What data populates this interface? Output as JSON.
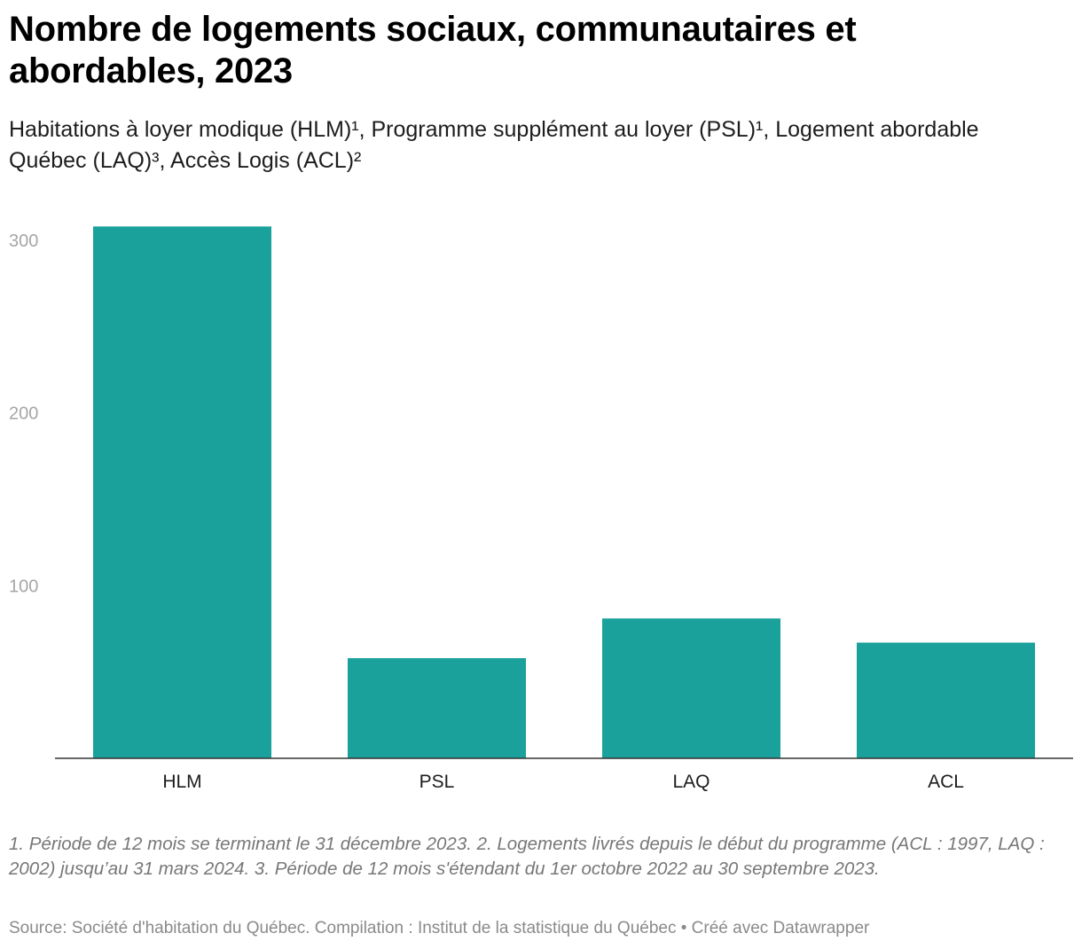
{
  "header": {
    "title": "Nombre de logements sociaux, communautaires et abordables, 2023",
    "subtitle": "Habitations à loyer modique (HLM)¹, Programme supplément au loyer (PSL)¹, Logement abordable Québec (LAQ)³, Accès Logis (ACL)²"
  },
  "chart_data": {
    "type": "bar",
    "title": "Nombre de logements sociaux, communautaires et abordables, 2023",
    "subtitle": "Habitations à loyer modique (HLM)¹, Programme supplément au loyer (PSL)¹, Logement abordable Québec (LAQ)³, Accès Logis (ACL)²",
    "xlabel": "",
    "ylabel": "",
    "categories": [
      "HLM",
      "PSL",
      "LAQ",
      "ACL"
    ],
    "values": [
      308,
      58,
      81,
      67
    ],
    "ylim": [
      0,
      310
    ],
    "yticks": [
      100,
      200,
      300
    ],
    "ytick_labels": [
      "100",
      "200",
      "300"
    ],
    "grid": false,
    "legend": "none",
    "bar_color": "#1ba19c"
  },
  "footer": {
    "notes": "1. Période de 12 mois se terminant le 31 décembre 2023. 2. Logements livrés depuis le début du programme (ACL : 1997, LAQ : 2002) jusqu’au 31 mars 2024. 3. Période de 12 mois s'étendant du 1er octobre 2022 au 30 septembre 2023.",
    "source": "Source: Société d'habitation du Québec. Compilation : Institut de la statistique du Québec • Créé avec Datawrapper"
  }
}
